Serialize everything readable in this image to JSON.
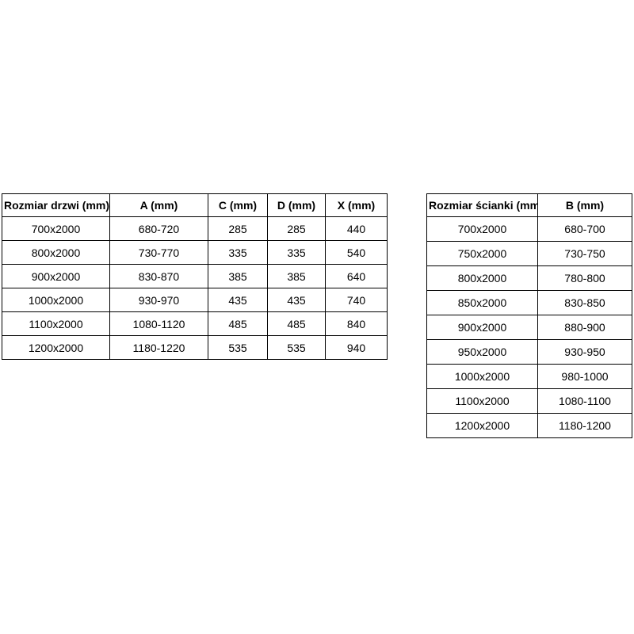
{
  "page": {
    "background_color": "#ffffff",
    "border_color": "#000000",
    "text_color": "#000000"
  },
  "tables": {
    "doors": {
      "headers": [
        "Rozmiar drzwi (mm)",
        "A (mm)",
        "C (mm)",
        "D (mm)",
        "X (mm)"
      ],
      "rows": [
        [
          "700x2000",
          "680-720",
          "285",
          "285",
          "440"
        ],
        [
          "800x2000",
          "730-770",
          "335",
          "335",
          "540"
        ],
        [
          "900x2000",
          "830-870",
          "385",
          "385",
          "640"
        ],
        [
          "1000x2000",
          "930-970",
          "435",
          "435",
          "740"
        ],
        [
          "1100x2000",
          "1080-1120",
          "485",
          "485",
          "840"
        ],
        [
          "1200x2000",
          "1180-1220",
          "535",
          "535",
          "940"
        ]
      ]
    },
    "walls": {
      "headers": [
        "Rozmiar ścianki (mm)",
        "B (mm)"
      ],
      "rows": [
        [
          "700x2000",
          "680-700"
        ],
        [
          "750x2000",
          "730-750"
        ],
        [
          "800x2000",
          "780-800"
        ],
        [
          "850x2000",
          "830-850"
        ],
        [
          "900x2000",
          "880-900"
        ],
        [
          "950x2000",
          "930-950"
        ],
        [
          "1000x2000",
          "980-1000"
        ],
        [
          "1100x2000",
          "1080-1100"
        ],
        [
          "1200x2000",
          "1180-1200"
        ]
      ]
    }
  }
}
